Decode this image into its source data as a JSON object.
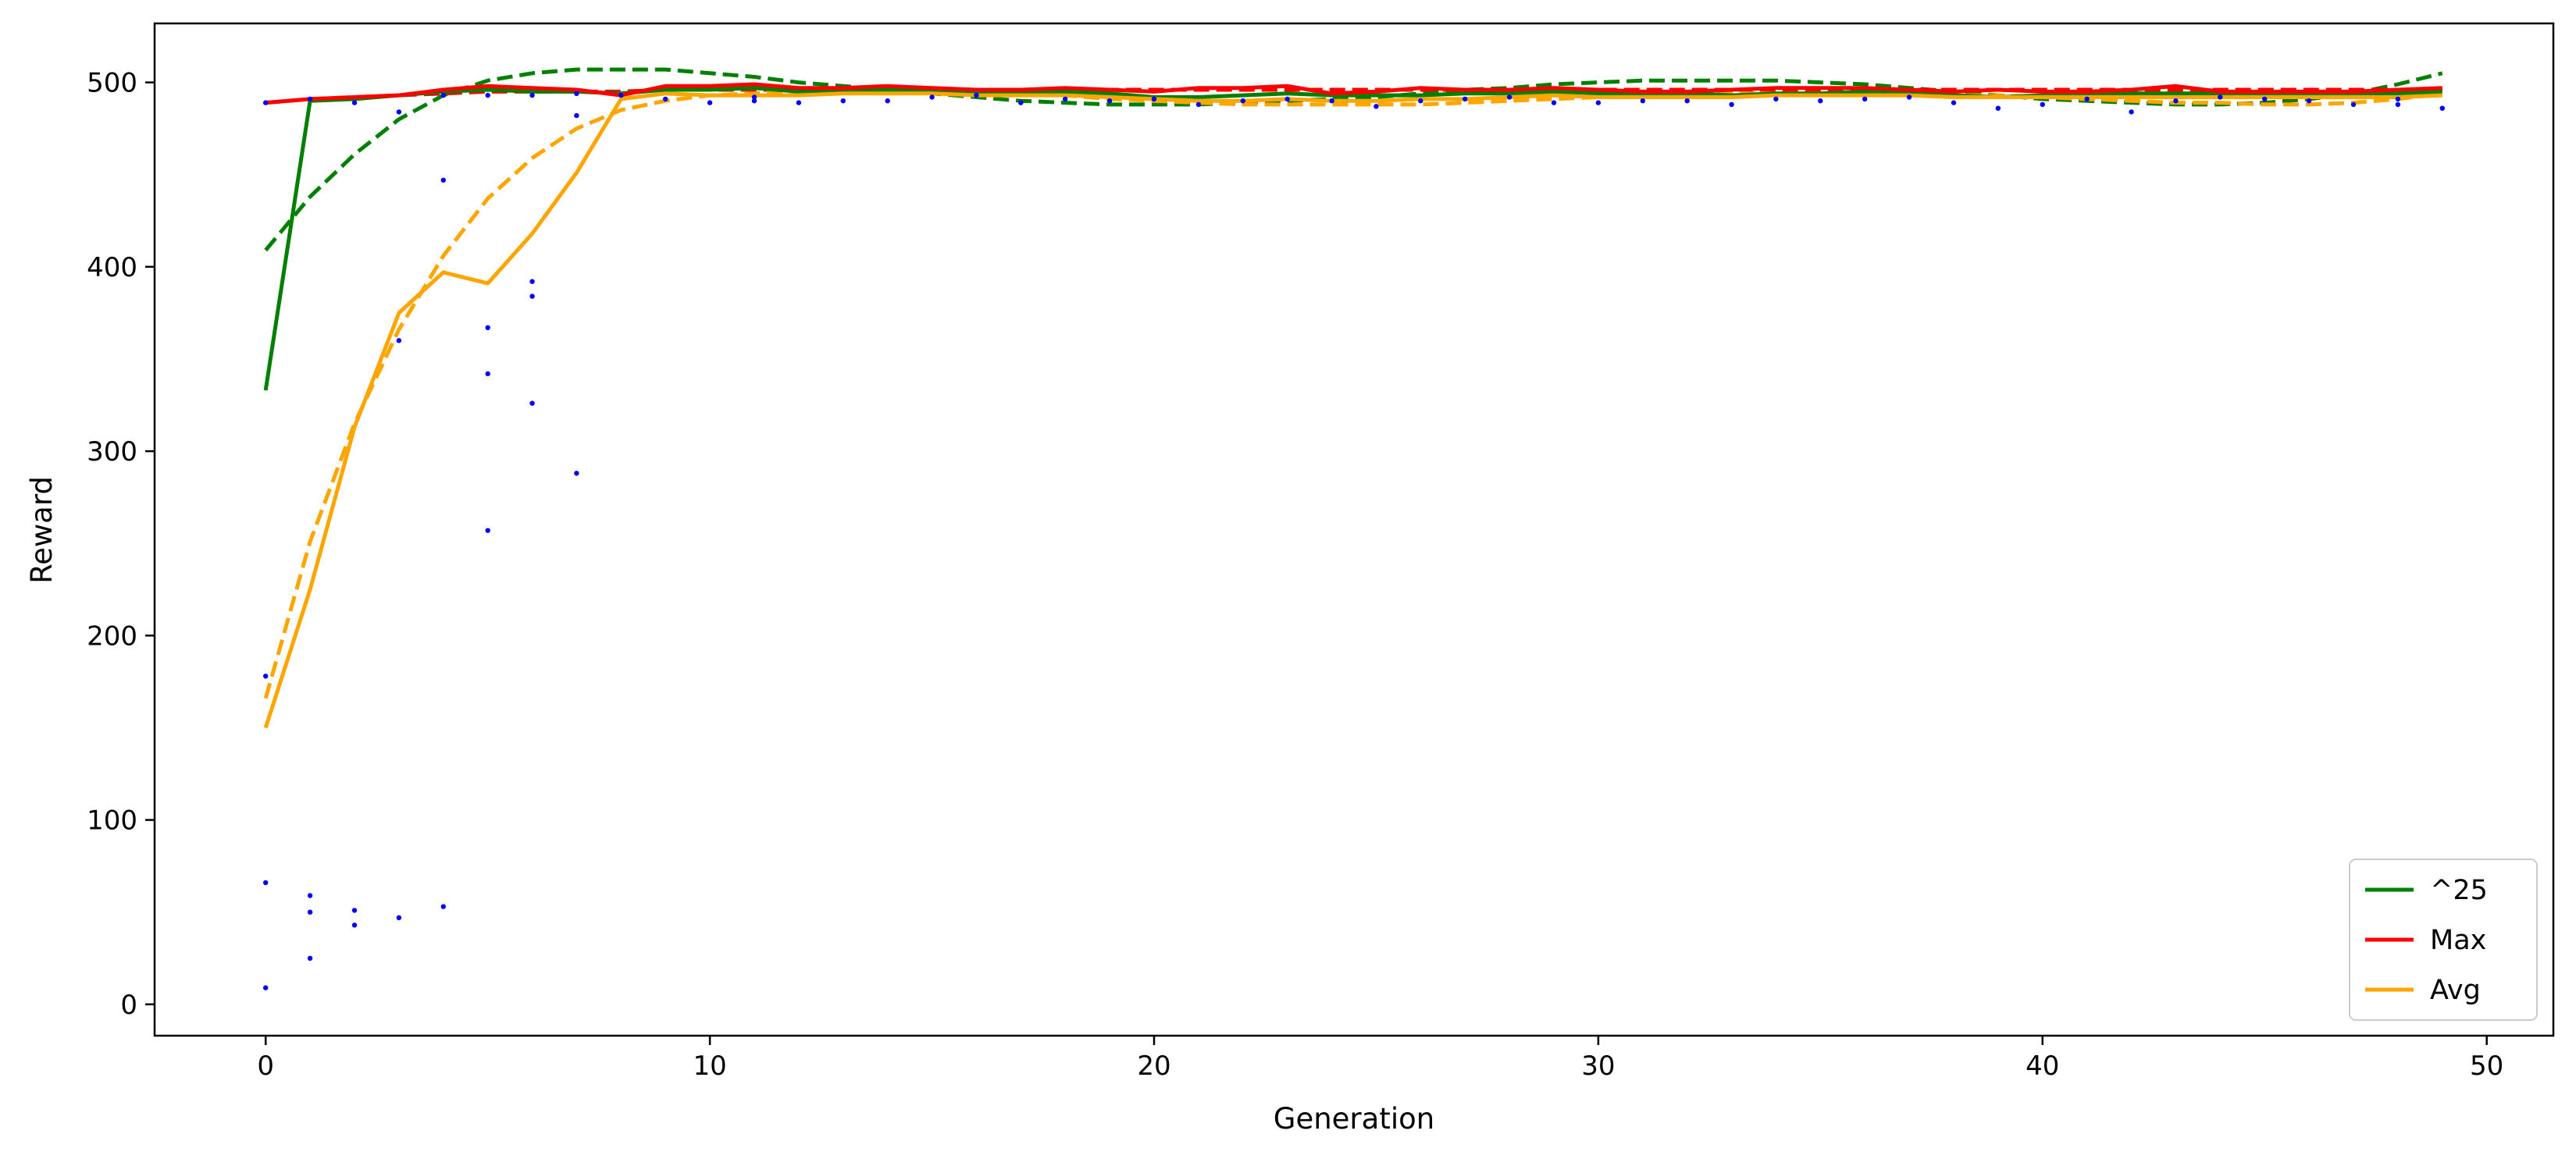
{
  "chart_data": {
    "type": "line",
    "xlabel": "Generation",
    "ylabel": "Reward",
    "xlim": [
      -2.5,
      51.5
    ],
    "ylim": [
      -17,
      532
    ],
    "xticks": [
      0,
      10,
      20,
      30,
      40,
      50
    ],
    "yticks": [
      0,
      100,
      200,
      300,
      400,
      500
    ],
    "grid": false,
    "legend_position": "bottom-right",
    "x": [
      0,
      1,
      2,
      3,
      4,
      5,
      6,
      7,
      8,
      9,
      10,
      11,
      12,
      13,
      14,
      15,
      16,
      17,
      18,
      19,
      20,
      21,
      22,
      23,
      24,
      25,
      26,
      27,
      28,
      29,
      30,
      31,
      32,
      33,
      34,
      35,
      36,
      37,
      38,
      39,
      40,
      41,
      42,
      43,
      44,
      45,
      46,
      47,
      48,
      49
    ],
    "series": [
      {
        "name": "^25",
        "color": "#008000",
        "style": "solid",
        "values": [
          333,
          490,
          491,
          493,
          495,
          496,
          495,
          495,
          494,
          496,
          496,
          497,
          495,
          495,
          496,
          495,
          494,
          494,
          495,
          494,
          492,
          492,
          493,
          494,
          493,
          493,
          493,
          494,
          494,
          495,
          494,
          494,
          494,
          493,
          494,
          494,
          495,
          495,
          493,
          492,
          493,
          493,
          494,
          494,
          494,
          494,
          494,
          494,
          494,
          495
        ]
      },
      {
        "name": "Max",
        "color": "#ff0000",
        "style": "solid",
        "values": [
          489,
          491,
          492,
          493,
          496,
          498,
          497,
          496,
          493,
          498,
          498,
          499,
          497,
          497,
          498,
          497,
          496,
          496,
          497,
          496,
          495,
          497,
          497,
          498,
          494,
          495,
          497,
          496,
          496,
          497,
          496,
          495,
          495,
          496,
          497,
          497,
          497,
          496,
          495,
          496,
          495,
          495,
          496,
          498,
          495,
          495,
          495,
          495,
          496,
          497
        ]
      },
      {
        "name": "Avg",
        "color": "#ffa500",
        "style": "solid",
        "values": [
          150,
          225,
          313,
          375,
          397,
          391,
          418,
          451,
          491,
          494,
          493,
          493,
          493,
          494,
          494,
          494,
          493,
          493,
          493,
          492,
          491,
          490,
          490,
          491,
          490,
          490,
          491,
          491,
          492,
          493,
          492,
          492,
          492,
          492,
          493,
          493,
          493,
          493,
          492,
          492,
          492,
          492,
          492,
          492,
          492,
          492,
          492,
          492,
          492,
          493
        ]
      },
      {
        "color": "#008000",
        "style": "dashed",
        "values": [
          409,
          438,
          461,
          480,
          493,
          501,
          505,
          507,
          507,
          507,
          505,
          503,
          500,
          498,
          496,
          494,
          492,
          490,
          489,
          488,
          488,
          488,
          489,
          490,
          491,
          492,
          494,
          496,
          497,
          499,
          500,
          501,
          501,
          501,
          501,
          500,
          499,
          497,
          495,
          493,
          491,
          490,
          489,
          488,
          488,
          489,
          491,
          494,
          499,
          505
        ]
      },
      {
        "color": "#ff0000",
        "style": "dashed",
        "values": [
          489,
          491,
          492,
          493,
          494,
          495,
          495,
          495,
          495,
          496,
          496,
          496,
          496,
          496,
          496,
          496,
          496,
          496,
          496,
          496,
          496,
          496,
          496,
          496,
          496,
          496,
          496,
          496,
          496,
          496,
          496,
          496,
          496,
          496,
          496,
          496,
          496,
          496,
          496,
          496,
          496,
          496,
          496,
          496,
          496,
          496,
          496,
          496,
          496,
          496
        ]
      },
      {
        "color": "#ffa500",
        "style": "dashed",
        "values": [
          166,
          251,
          315,
          366,
          406,
          437,
          459,
          475,
          485,
          490,
          493,
          494,
          495,
          496,
          496,
          496,
          495,
          494,
          493,
          491,
          490,
          489,
          488,
          488,
          488,
          488,
          488,
          489,
          490,
          491,
          492,
          493,
          493,
          494,
          494,
          494,
          494,
          494,
          493,
          493,
          492,
          491,
          490,
          489,
          489,
          488,
          488,
          489,
          491,
          494
        ]
      }
    ],
    "scatter": {
      "color": "#0000ff",
      "points": [
        [
          0,
          178
        ],
        [
          0,
          66
        ],
        [
          0,
          9
        ],
        [
          0,
          489
        ],
        [
          1,
          59
        ],
        [
          1,
          50
        ],
        [
          1,
          25
        ],
        [
          1,
          491
        ],
        [
          2,
          51
        ],
        [
          2,
          43
        ],
        [
          2,
          489
        ],
        [
          3,
          360
        ],
        [
          3,
          484
        ],
        [
          3,
          47
        ],
        [
          4,
          447
        ],
        [
          4,
          53
        ],
        [
          4,
          493
        ],
        [
          5,
          367
        ],
        [
          5,
          342
        ],
        [
          5,
          257
        ],
        [
          5,
          493
        ],
        [
          6,
          392
        ],
        [
          6,
          384
        ],
        [
          6,
          326
        ],
        [
          6,
          493
        ],
        [
          7,
          288
        ],
        [
          7,
          482
        ],
        [
          7,
          494
        ],
        [
          8,
          493
        ],
        [
          9,
          491
        ],
        [
          10,
          489
        ],
        [
          11,
          490
        ],
        [
          11,
          492
        ],
        [
          12,
          489
        ],
        [
          13,
          490
        ],
        [
          14,
          490
        ],
        [
          15,
          492
        ],
        [
          16,
          493
        ],
        [
          17,
          489
        ],
        [
          18,
          491
        ],
        [
          19,
          490
        ],
        [
          20,
          491
        ],
        [
          21,
          488
        ],
        [
          22,
          490
        ],
        [
          23,
          491
        ],
        [
          24,
          490
        ],
        [
          25,
          487
        ],
        [
          26,
          490
        ],
        [
          27,
          491
        ],
        [
          28,
          492
        ],
        [
          29,
          489
        ],
        [
          30,
          489
        ],
        [
          31,
          490
        ],
        [
          32,
          490
        ],
        [
          33,
          488
        ],
        [
          34,
          491
        ],
        [
          35,
          490
        ],
        [
          36,
          491
        ],
        [
          37,
          492
        ],
        [
          38,
          489
        ],
        [
          39,
          486
        ],
        [
          40,
          488
        ],
        [
          41,
          491
        ],
        [
          42,
          484
        ],
        [
          43,
          490
        ],
        [
          44,
          492
        ],
        [
          45,
          491
        ],
        [
          46,
          490
        ],
        [
          47,
          488
        ],
        [
          48,
          488
        ],
        [
          48,
          491
        ],
        [
          49,
          486
        ]
      ]
    }
  }
}
